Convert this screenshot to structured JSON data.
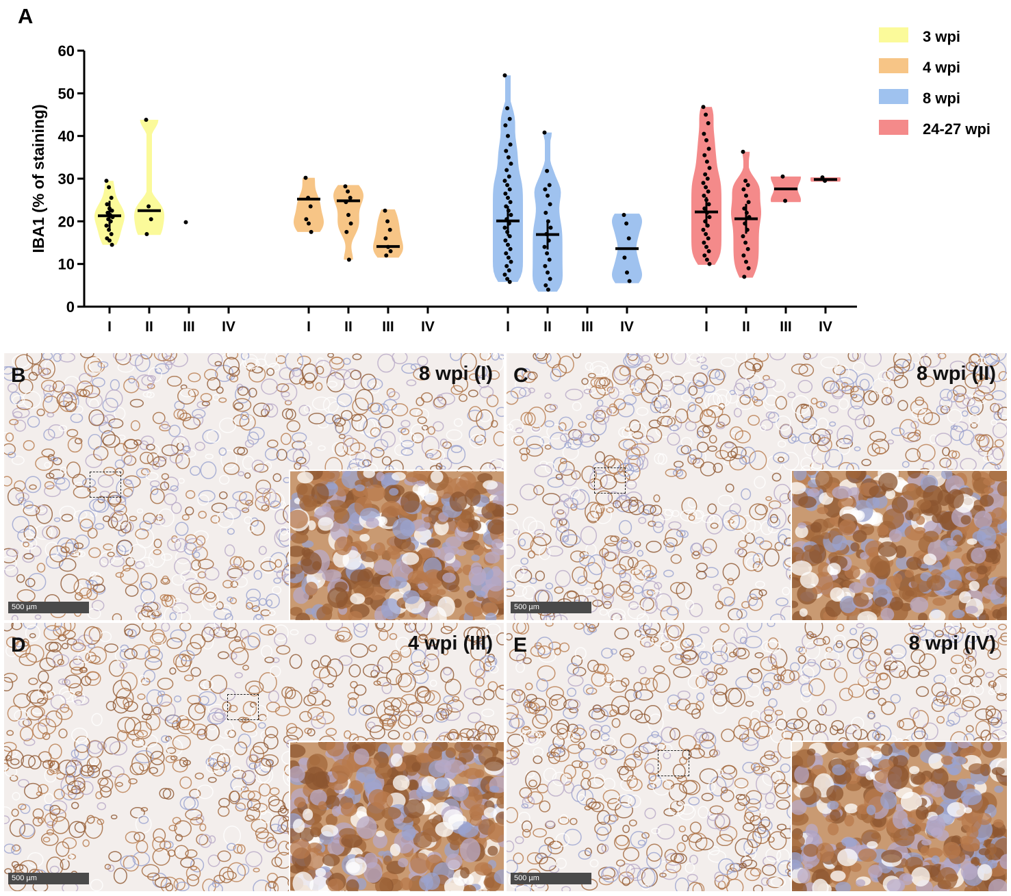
{
  "panel_a_letter": "A",
  "chart_data": {
    "type": "violin",
    "title": "",
    "ylabel": "IBA1 (% of staining)",
    "xlabel": "",
    "ylim": [
      0,
      60
    ],
    "yticks": [
      0,
      10,
      20,
      30,
      40,
      50,
      60
    ],
    "legend_position": "top-right",
    "categories": [
      "I",
      "II",
      "III",
      "IV"
    ],
    "series": [
      {
        "name": "3 wpi",
        "color": "#fbfa9a",
        "groups": [
          {
            "category": "I",
            "median": 21.3,
            "range": [
              14.5,
              29.5
            ],
            "points": [
              29.5,
              28.0,
              25.5,
              24.0,
              23.0,
              22.5,
              22.0,
              21.5,
              21.0,
              20.5,
              20.0,
              19.0,
              18.0,
              17.0,
              16.0,
              15.5,
              14.5
            ]
          },
          {
            "category": "II",
            "median": 22.5,
            "range": [
              16.8,
              43.8
            ],
            "points": [
              43.8,
              23.5,
              20.5,
              17.0
            ]
          },
          {
            "category": "III",
            "median": null,
            "range": null,
            "points": [
              19.8
            ]
          },
          {
            "category": "IV",
            "median": null,
            "range": null,
            "points": []
          }
        ]
      },
      {
        "name": "4 wpi",
        "color": "#f7c586",
        "groups": [
          {
            "category": "I",
            "median": 25.2,
            "range": [
              17.5,
              30.2
            ],
            "points": [
              30.2,
              25.5,
              23.5,
              20.5,
              19.5,
              17.5
            ]
          },
          {
            "category": "II",
            "median": 24.8,
            "range": [
              11.0,
              28.5
            ],
            "points": [
              28.2,
              27.0,
              25.5,
              24.5,
              21.5,
              19.5,
              17.5,
              11.0
            ]
          },
          {
            "category": "III",
            "median": 14.1,
            "range": [
              11.5,
              22.8
            ],
            "points": [
              22.5,
              20.0,
              18.0,
              16.0,
              14.0,
              13.0,
              12.0
            ]
          },
          {
            "category": "IV",
            "median": null,
            "range": null,
            "points": []
          }
        ]
      },
      {
        "name": "8 wpi",
        "color": "#9fc2ef",
        "groups": [
          {
            "category": "I",
            "median": 20.1,
            "range": [
              5.8,
              54.2
            ],
            "points": [
              54.2,
              46.5,
              44.0,
              42.5,
              40.0,
              38.0,
              36.5,
              35.0,
              33.5,
              32.0,
              30.5,
              29.5,
              28.5,
              27.5,
              26.5,
              25.5,
              24.5,
              23.5,
              22.5,
              21.5,
              20.5,
              19.5,
              18.5,
              17.5,
              16.5,
              15.5,
              14.5,
              13.5,
              12.5,
              11.5,
              10.5,
              9.5,
              8.5,
              7.5,
              6.5,
              5.8
            ]
          },
          {
            "category": "II",
            "median": 16.9,
            "range": [
              3.5,
              40.8
            ],
            "points": [
              40.8,
              31.8,
              28.5,
              27.5,
              26.0,
              24.0,
              22.0,
              20.0,
              18.5,
              17.0,
              15.5,
              14.0,
              12.5,
              11.0,
              9.5,
              8.0,
              6.5,
              5.0,
              4.0
            ]
          },
          {
            "category": "III",
            "median": null,
            "range": null,
            "points": []
          },
          {
            "category": "IV",
            "median": 13.6,
            "range": [
              5.5,
              21.8
            ],
            "points": [
              21.5,
              19.5,
              16.0,
              11.5,
              8.0,
              6.0
            ]
          }
        ]
      },
      {
        "name": "24-27 wpi",
        "color": "#f48a8a",
        "groups": [
          {
            "category": "I",
            "median": 22.2,
            "range": [
              9.8,
              46.8
            ],
            "points": [
              46.8,
              45.0,
              43.0,
              40.5,
              39.0,
              37.0,
              35.5,
              34.0,
              32.5,
              31.0,
              30.0,
              29.0,
              28.0,
              27.0,
              26.0,
              25.0,
              24.0,
              23.0,
              22.0,
              21.0,
              20.0,
              19.0,
              18.0,
              17.0,
              16.0,
              15.0,
              14.0,
              13.0,
              12.0,
              11.0,
              10.0
            ]
          },
          {
            "category": "II",
            "median": 20.6,
            "range": [
              6.8,
              36.3
            ],
            "points": [
              36.3,
              29.5,
              28.5,
              27.5,
              26.0,
              24.5,
              23.0,
              22.0,
              21.0,
              19.5,
              18.0,
              16.5,
              15.0,
              13.5,
              12.0,
              10.5,
              9.0,
              7.0
            ]
          },
          {
            "category": "III",
            "median": 27.6,
            "range": [
              24.5,
              30.5
            ],
            "points": [
              30.5,
              24.8
            ]
          },
          {
            "category": "IV",
            "median": 29.8,
            "range": [
              29.3,
              30.3
            ],
            "points": [
              30.3,
              29.5
            ]
          }
        ]
      }
    ]
  },
  "panels": [
    {
      "letter": "B",
      "title": "8 wpi (I)",
      "scale": "500 µm"
    },
    {
      "letter": "C",
      "title": "8 wpi (II)",
      "scale": "500 µm"
    },
    {
      "letter": "D",
      "title": "4 wpi (III)",
      "scale": "500 µm"
    },
    {
      "letter": "E",
      "title": "8 wpi (IV)",
      "scale": "500 µm"
    }
  ]
}
